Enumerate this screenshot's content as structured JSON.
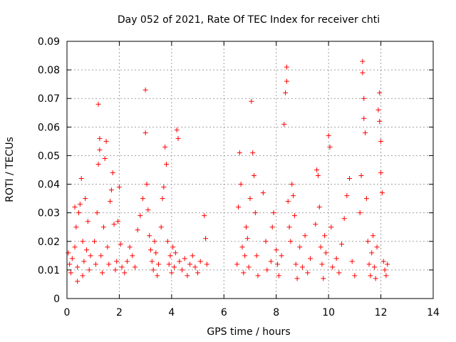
{
  "chart_data": {
    "type": "scatter",
    "title": "Day 052 of 2021, Rate Of TEC Index for receiver chti",
    "xlabel": "GPS time / hours",
    "ylabel": "ROTI / TECUs",
    "xlim": [
      0,
      14
    ],
    "ylim": [
      0,
      0.09
    ],
    "grid": true,
    "marker": "+",
    "color": "#ff0000",
    "xticks": [
      "0",
      "2",
      "4",
      "6",
      "8",
      "10",
      "12",
      "14"
    ],
    "yticks": [
      "0",
      "0.01",
      "0.02",
      "0.03",
      "0.04",
      "0.05",
      "0.06",
      "0.07",
      "0.08",
      "0.09"
    ],
    "series": [
      {
        "name": "ROTI",
        "points": [
          [
            0.05,
            0.016
          ],
          [
            0.1,
            0.012
          ],
          [
            0.15,
            0.009
          ],
          [
            0.2,
            0.014
          ],
          [
            0.3,
            0.018
          ],
          [
            0.3,
            0.032
          ],
          [
            0.35,
            0.025
          ],
          [
            0.4,
            0.011
          ],
          [
            0.45,
            0.03
          ],
          [
            0.5,
            0.033
          ],
          [
            0.55,
            0.042
          ],
          [
            0.6,
            0.02
          ],
          [
            0.65,
            0.013
          ],
          [
            0.7,
            0.035
          ],
          [
            0.75,
            0.017
          ],
          [
            0.8,
            0.027
          ],
          [
            0.85,
            0.01
          ],
          [
            0.9,
            0.015
          ],
          [
            0.4,
            0.006
          ],
          [
            0.6,
            0.008
          ],
          [
            1.05,
            0.02
          ],
          [
            1.1,
            0.012
          ],
          [
            1.15,
            0.03
          ],
          [
            1.2,
            0.047
          ],
          [
            1.2,
            0.068
          ],
          [
            1.25,
            0.056
          ],
          [
            1.25,
            0.052
          ],
          [
            1.3,
            0.015
          ],
          [
            1.35,
            0.009
          ],
          [
            1.4,
            0.025
          ],
          [
            1.45,
            0.049
          ],
          [
            1.5,
            0.055
          ],
          [
            1.55,
            0.018
          ],
          [
            1.6,
            0.012
          ],
          [
            1.65,
            0.034
          ],
          [
            1.7,
            0.038
          ],
          [
            1.75,
            0.044
          ],
          [
            1.8,
            0.026
          ],
          [
            1.85,
            0.01
          ],
          [
            1.9,
            0.013
          ],
          [
            1.95,
            0.027
          ],
          [
            2.0,
            0.039
          ],
          [
            2.05,
            0.019
          ],
          [
            2.1,
            0.011
          ],
          [
            2.2,
            0.009
          ],
          [
            2.3,
            0.013
          ],
          [
            2.4,
            0.018
          ],
          [
            2.5,
            0.015
          ],
          [
            2.6,
            0.011
          ],
          [
            2.7,
            0.024
          ],
          [
            2.8,
            0.029
          ],
          [
            2.9,
            0.035
          ],
          [
            3.0,
            0.073
          ],
          [
            3.0,
            0.058
          ],
          [
            3.05,
            0.04
          ],
          [
            3.1,
            0.031
          ],
          [
            3.15,
            0.022
          ],
          [
            3.2,
            0.017
          ],
          [
            3.25,
            0.013
          ],
          [
            3.3,
            0.01
          ],
          [
            3.35,
            0.02
          ],
          [
            3.4,
            0.016
          ],
          [
            3.45,
            0.008
          ],
          [
            3.5,
            0.012
          ],
          [
            3.6,
            0.025
          ],
          [
            3.65,
            0.035
          ],
          [
            3.7,
            0.039
          ],
          [
            3.75,
            0.053
          ],
          [
            3.8,
            0.047
          ],
          [
            3.85,
            0.02
          ],
          [
            3.9,
            0.012
          ],
          [
            3.95,
            0.015
          ],
          [
            4.0,
            0.009
          ],
          [
            4.05,
            0.018
          ],
          [
            4.1,
            0.011
          ],
          [
            4.15,
            0.016
          ],
          [
            4.2,
            0.059
          ],
          [
            4.25,
            0.056
          ],
          [
            4.3,
            0.013
          ],
          [
            4.4,
            0.01
          ],
          [
            4.5,
            0.014
          ],
          [
            4.6,
            0.008
          ],
          [
            4.7,
            0.012
          ],
          [
            4.8,
            0.015
          ],
          [
            4.9,
            0.011
          ],
          [
            5.0,
            0.009
          ],
          [
            5.1,
            0.013
          ],
          [
            5.25,
            0.029
          ],
          [
            5.3,
            0.021
          ],
          [
            5.35,
            0.012
          ],
          [
            6.5,
            0.012
          ],
          [
            6.55,
            0.032
          ],
          [
            6.6,
            0.051
          ],
          [
            6.65,
            0.04
          ],
          [
            6.7,
            0.018
          ],
          [
            6.75,
            0.009
          ],
          [
            6.8,
            0.015
          ],
          [
            6.85,
            0.025
          ],
          [
            6.9,
            0.021
          ],
          [
            6.95,
            0.011
          ],
          [
            7.0,
            0.035
          ],
          [
            7.05,
            0.069
          ],
          [
            7.1,
            0.051
          ],
          [
            7.15,
            0.043
          ],
          [
            7.2,
            0.03
          ],
          [
            7.25,
            0.015
          ],
          [
            7.3,
            0.008
          ],
          [
            7.5,
            0.037
          ],
          [
            7.6,
            0.02
          ],
          [
            7.65,
            0.01
          ],
          [
            7.8,
            0.013
          ],
          [
            7.85,
            0.025
          ],
          [
            7.9,
            0.03
          ],
          [
            8.0,
            0.017
          ],
          [
            8.05,
            0.012
          ],
          [
            8.1,
            0.008
          ],
          [
            8.2,
            0.015
          ],
          [
            8.3,
            0.061
          ],
          [
            8.35,
            0.072
          ],
          [
            8.4,
            0.081
          ],
          [
            8.4,
            0.076
          ],
          [
            8.45,
            0.034
          ],
          [
            8.5,
            0.025
          ],
          [
            8.55,
            0.02
          ],
          [
            8.6,
            0.04
          ],
          [
            8.65,
            0.036
          ],
          [
            8.7,
            0.029
          ],
          [
            8.75,
            0.012
          ],
          [
            8.8,
            0.007
          ],
          [
            8.9,
            0.018
          ],
          [
            9.0,
            0.011
          ],
          [
            9.1,
            0.022
          ],
          [
            9.2,
            0.009
          ],
          [
            9.3,
            0.014
          ],
          [
            9.5,
            0.026
          ],
          [
            9.55,
            0.045
          ],
          [
            9.6,
            0.043
          ],
          [
            9.65,
            0.032
          ],
          [
            9.7,
            0.018
          ],
          [
            9.75,
            0.012
          ],
          [
            9.8,
            0.007
          ],
          [
            9.85,
            0.022
          ],
          [
            9.9,
            0.016
          ],
          [
            10.0,
            0.057
          ],
          [
            10.05,
            0.053
          ],
          [
            10.1,
            0.025
          ],
          [
            10.15,
            0.011
          ],
          [
            10.3,
            0.014
          ],
          [
            10.4,
            0.009
          ],
          [
            10.5,
            0.019
          ],
          [
            10.6,
            0.028
          ],
          [
            10.7,
            0.036
          ],
          [
            10.8,
            0.042
          ],
          [
            10.9,
            0.013
          ],
          [
            11.0,
            0.008
          ],
          [
            11.2,
            0.03
          ],
          [
            11.25,
            0.043
          ],
          [
            11.3,
            0.083
          ],
          [
            11.3,
            0.079
          ],
          [
            11.35,
            0.07
          ],
          [
            11.35,
            0.063
          ],
          [
            11.4,
            0.058
          ],
          [
            11.45,
            0.035
          ],
          [
            11.5,
            0.02
          ],
          [
            11.55,
            0.012
          ],
          [
            11.6,
            0.008
          ],
          [
            11.65,
            0.016
          ],
          [
            11.7,
            0.022
          ],
          [
            11.75,
            0.011
          ],
          [
            11.8,
            0.007
          ],
          [
            11.85,
            0.018
          ],
          [
            11.9,
            0.066
          ],
          [
            11.95,
            0.072
          ],
          [
            11.95,
            0.062
          ],
          [
            12.0,
            0.055
          ],
          [
            12.0,
            0.044
          ],
          [
            12.05,
            0.037
          ],
          [
            12.1,
            0.013
          ],
          [
            12.15,
            0.01
          ],
          [
            12.2,
            0.008
          ],
          [
            12.25,
            0.012
          ]
        ]
      }
    ]
  }
}
